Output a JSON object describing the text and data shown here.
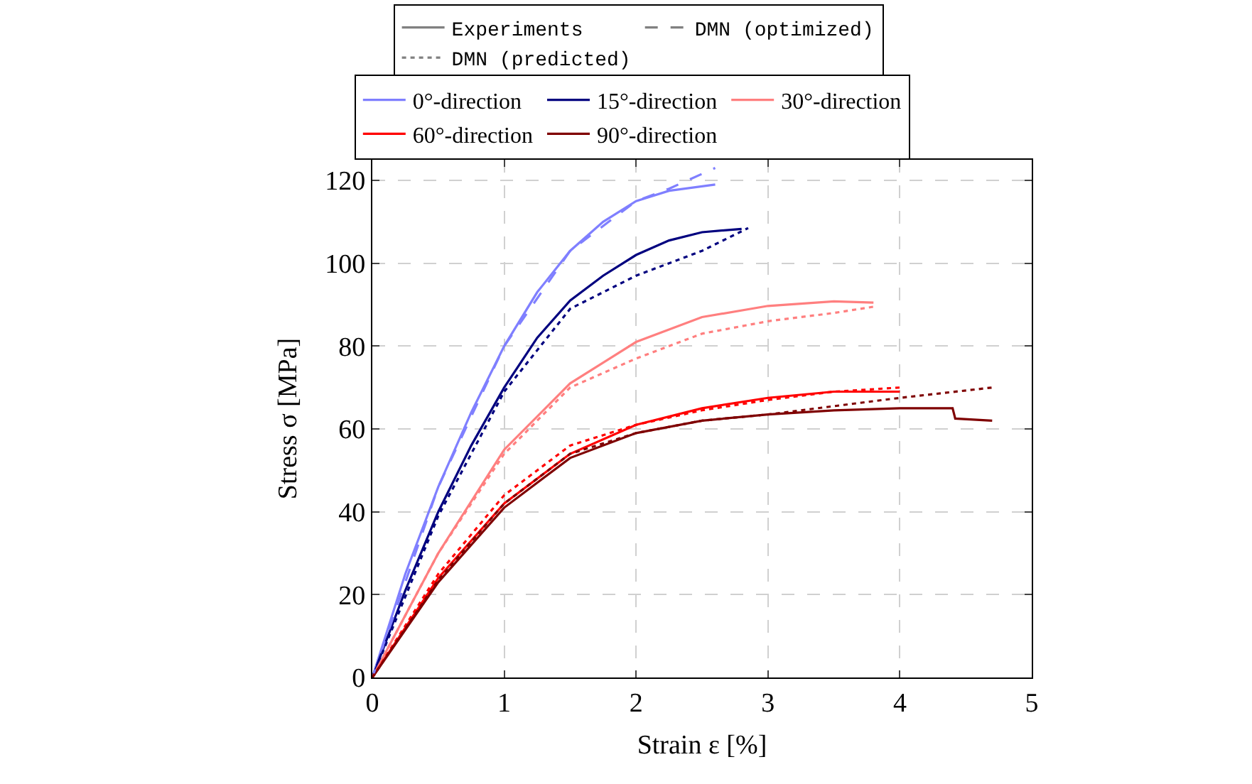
{
  "chart_data": {
    "type": "line",
    "xlabel": "Strain ε [%]",
    "ylabel": "Stress σ [MPa]",
    "xlim": [
      0,
      5
    ],
    "ylim": [
      0,
      125
    ],
    "xticks": [
      0,
      1,
      2,
      3,
      4,
      5
    ],
    "yticks": [
      0,
      20,
      40,
      60,
      80,
      100,
      120
    ],
    "grid": true,
    "legend": "top",
    "marker": "none",
    "series": [
      {
        "name": "Experiments",
        "color": "#808080",
        "line_style": "solid"
      },
      {
        "name": "DMN (optimized)",
        "color": "#808080",
        "line_style": "dashed"
      },
      {
        "name": "DMN (predicted)",
        "color": "#808080",
        "line_style": "dotted"
      },
      {
        "name": "0°-direction",
        "color": "#7f7fff",
        "line_style": "solid",
        "x": [
          0,
          0.25,
          0.5,
          0.75,
          1,
          1.25,
          1.5,
          1.75,
          2,
          2.25,
          2.6
        ],
        "values": [
          0,
          25,
          46,
          64,
          80,
          93,
          103,
          110,
          115,
          117.5,
          119
        ]
      },
      {
        "name": "15°-direction",
        "color": "#00007f",
        "line_style": "solid",
        "x": [
          0,
          0.25,
          0.5,
          0.75,
          1,
          1.25,
          1.5,
          1.75,
          2,
          2.25,
          2.5,
          2.8
        ],
        "values": [
          0,
          21,
          40,
          56,
          70,
          82,
          91,
          97,
          102,
          105.5,
          107.5,
          108.3
        ]
      },
      {
        "name": "30°-direction",
        "color": "#ff7f7f",
        "line_style": "solid",
        "x": [
          0,
          0.5,
          1,
          1.5,
          2,
          2.5,
          3,
          3.5,
          3.8
        ],
        "values": [
          0,
          30,
          55,
          71,
          81,
          87,
          89.7,
          90.8,
          90.5
        ]
      },
      {
        "name": "60°-direction",
        "color": "#ff0000",
        "line_style": "solid",
        "x": [
          0,
          0.5,
          1,
          1.5,
          2,
          2.5,
          3,
          3.5,
          4
        ],
        "values": [
          0,
          24,
          42,
          54,
          61,
          65,
          67.5,
          69,
          69
        ]
      },
      {
        "name": "90°-direction",
        "color": "#7f0000",
        "line_style": "solid",
        "x": [
          0,
          0.5,
          1,
          1.5,
          2,
          2.5,
          3,
          3.5,
          4,
          4.4,
          4.42,
          4.7
        ],
        "values": [
          0,
          23,
          41,
          53,
          59,
          62,
          63.5,
          64.5,
          65,
          65,
          62.5,
          62
        ]
      },
      {
        "color": "#7f7fff",
        "line_style": "dashed",
        "x": [
          0,
          0.5,
          1,
          1.5,
          2,
          2.25,
          2.6
        ],
        "values": [
          0,
          46,
          80,
          103,
          115,
          118,
          123
        ]
      },
      {
        "color": "#00007f",
        "line_style": "dotted",
        "x": [
          0,
          0.5,
          1,
          1.5,
          2,
          2.5,
          2.85
        ],
        "values": [
          0,
          39,
          69,
          89,
          97,
          103,
          108.5
        ]
      },
      {
        "color": "#ff7f7f",
        "line_style": "dotted",
        "x": [
          0,
          0.5,
          1,
          1.5,
          2,
          2.5,
          3,
          3.5,
          3.8
        ],
        "values": [
          0,
          30,
          54,
          70,
          77,
          83,
          86,
          88,
          89.5
        ]
      },
      {
        "color": "#ff0000",
        "line_style": "dotted",
        "x": [
          0,
          0.5,
          1,
          1.5,
          2,
          2.5,
          3,
          3.5,
          4
        ],
        "values": [
          0,
          25,
          44,
          56,
          61,
          64.5,
          67,
          69,
          70
        ]
      },
      {
        "color": "#7f0000",
        "line_style": "dotted",
        "x": [
          0,
          0.5,
          1,
          1.5,
          2,
          2.5,
          3,
          3.5,
          4,
          4.7
        ],
        "values": [
          0,
          23.5,
          42,
          54,
          59,
          62,
          63.5,
          65.5,
          67.5,
          70
        ]
      }
    ]
  }
}
